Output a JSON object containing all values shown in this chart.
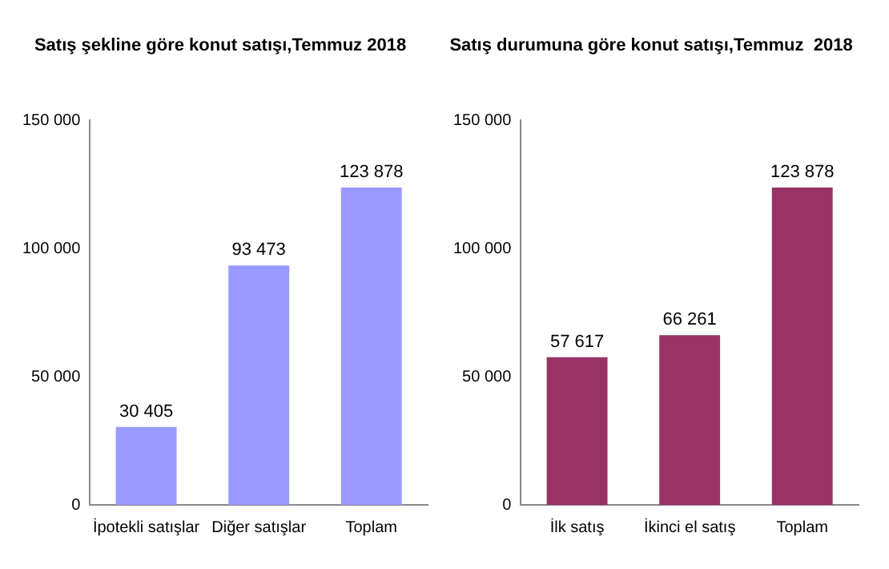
{
  "chart_data": [
    {
      "type": "bar",
      "title": "Satış şekline göre konut satışı,Temmuz 2018",
      "categories": [
        "İpotekli satışlar",
        "Diğer satışlar",
        "Toplam"
      ],
      "values": [
        30405,
        93473,
        123878
      ],
      "value_labels": [
        "30 405",
        "93 473",
        "123 878"
      ],
      "color": "#9999ff",
      "ylim": [
        0,
        150000
      ],
      "yticks": [
        {
          "value": 0,
          "label": "0"
        },
        {
          "value": 50000,
          "label": "50 000"
        },
        {
          "value": 100000,
          "label": "100 000"
        },
        {
          "value": 150000,
          "label": "150 000"
        }
      ],
      "grid": false,
      "legend": false
    },
    {
      "type": "bar",
      "title": "Satış durumuna göre konut satışı,Temmuz  2018",
      "categories": [
        "İlk satış",
        "İkinci el satış",
        "Toplam"
      ],
      "values": [
        57617,
        66261,
        123878
      ],
      "value_labels": [
        "57 617",
        "66 261",
        "123 878"
      ],
      "color": "#993366",
      "ylim": [
        0,
        150000
      ],
      "yticks": [
        {
          "value": 0,
          "label": "0"
        },
        {
          "value": 50000,
          "label": "50 000"
        },
        {
          "value": 100000,
          "label": "100 000"
        },
        {
          "value": 150000,
          "label": "150 000"
        }
      ],
      "grid": false,
      "legend": false
    }
  ]
}
